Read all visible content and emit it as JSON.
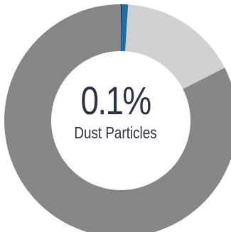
{
  "chart_data": {
    "type": "pie",
    "style": "donut",
    "center_value": "0.1%",
    "center_label": "Dust Particles",
    "slices": [
      {
        "value": 0.1,
        "color": "#1a1a1a"
      },
      {
        "value": 0.9,
        "color": "#1b6fa3"
      },
      {
        "value": 16.5,
        "color": "#d0d1d3"
      },
      {
        "value": 82.5,
        "color": "#858685"
      }
    ]
  }
}
